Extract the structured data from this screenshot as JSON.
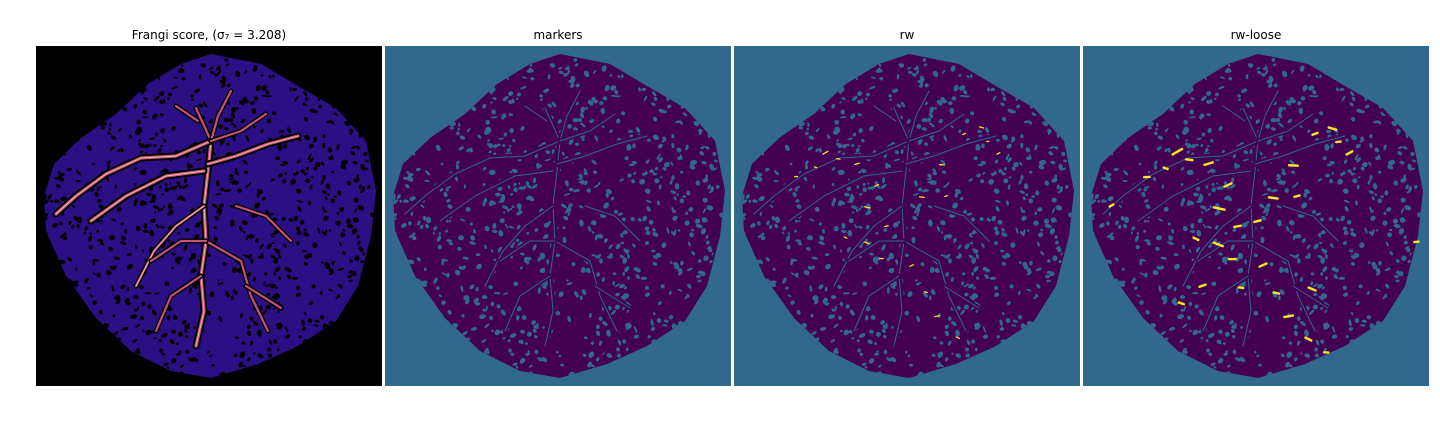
{
  "figure": {
    "panels": [
      {
        "id": "frangi",
        "title": "Frangi score, (σ₇ = 3.208)",
        "colormap": "magma",
        "background": "#000000",
        "blob": "#2a0f85",
        "vessel": "#c4527b",
        "vessel_hot": "#fcd9b0"
      },
      {
        "id": "markers",
        "title": "markers",
        "colormap": "viridis",
        "background": "#31688e",
        "blob": "#440154",
        "holes": "#31688e"
      },
      {
        "id": "rw",
        "title": "rw",
        "colormap": "viridis",
        "background": "#31688e",
        "blob": "#440154",
        "holes": "#31688e",
        "highlight": "#fde725"
      },
      {
        "id": "rw-loose",
        "title": "rw-loose",
        "colormap": "viridis",
        "background": "#31688e",
        "blob": "#440154",
        "holes": "#31688e",
        "highlight": "#fde725"
      }
    ]
  }
}
